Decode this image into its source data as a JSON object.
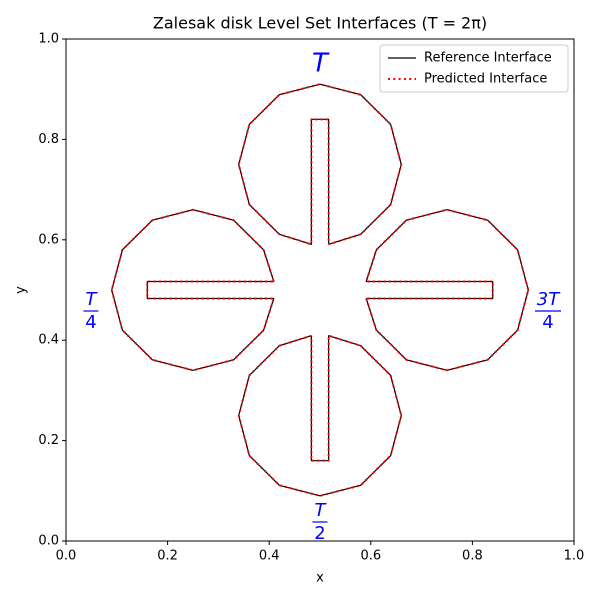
{
  "chart_data": {
    "type": "line",
    "title": "Zalesak disk Level Set Interfaces (T = 2π)",
    "x_label": "x",
    "y_label": "y",
    "xlim": [
      0,
      1
    ],
    "ylim": [
      0,
      1
    ],
    "xticks": [
      {
        "value": 0,
        "label": "0.0"
      },
      {
        "value": 0.2,
        "label": "0.2"
      },
      {
        "value": 0.4,
        "label": "0.4"
      },
      {
        "value": 0.6,
        "label": "0.6"
      },
      {
        "value": 0.8,
        "label": "0.8"
      },
      {
        "value": 1,
        "label": "1.0"
      }
    ],
    "yticks": [
      {
        "value": 0,
        "label": "0.0"
      },
      {
        "value": 0.2,
        "label": "0.2"
      },
      {
        "value": 0.4,
        "label": "0.4"
      },
      {
        "value": 0.6,
        "label": "0.6"
      },
      {
        "value": 0.8,
        "label": "0.8"
      },
      {
        "value": 1,
        "label": "1.0"
      }
    ],
    "legend": "upper right",
    "annotation_color": "#0000ff",
    "annotations": [
      {
        "text": "T"
      },
      {
        "numerator": "T",
        "denominator": "4"
      },
      {
        "numerator": "T",
        "denominator": "2"
      },
      {
        "numerator": "3T",
        "denominator": "4"
      }
    ],
    "series": [
      {
        "name": "Reference Interface",
        "color": "#000000",
        "style": "solid",
        "x": [
          0.517,
          0.58,
          0.639,
          0.66,
          0.639,
          0.58,
          0.5,
          0.42,
          0.361,
          0.34,
          0.361,
          0.42,
          0.483,
          0.483,
          0.517,
          0.517,
          null,
          0.409,
          0.389,
          0.33,
          0.25,
          0.17,
          0.111,
          0.09,
          0.111,
          0.17,
          0.25,
          0.33,
          0.389,
          0.409,
          0.16,
          0.16,
          0.409,
          null,
          0.483,
          0.42,
          0.361,
          0.34,
          0.361,
          0.42,
          0.5,
          0.58,
          0.639,
          0.66,
          0.639,
          0.58,
          0.517,
          0.517,
          0.483,
          0.483,
          null,
          0.591,
          0.611,
          0.67,
          0.75,
          0.83,
          0.889,
          0.91,
          0.889,
          0.83,
          0.75,
          0.67,
          0.611,
          0.591,
          0.84,
          0.84,
          0.591
        ],
        "y": [
          0.591,
          0.611,
          0.67,
          0.75,
          0.83,
          0.889,
          0.91,
          0.889,
          0.83,
          0.75,
          0.67,
          0.611,
          0.591,
          0.84,
          0.84,
          0.591,
          null,
          0.517,
          0.58,
          0.639,
          0.66,
          0.639,
          0.58,
          0.5,
          0.42,
          0.361,
          0.34,
          0.361,
          0.42,
          0.483,
          0.483,
          0.517,
          0.517,
          null,
          0.409,
          0.389,
          0.33,
          0.25,
          0.17,
          0.111,
          0.09,
          0.111,
          0.17,
          0.25,
          0.33,
          0.389,
          0.409,
          0.16,
          0.16,
          0.409,
          null,
          0.483,
          0.42,
          0.361,
          0.34,
          0.361,
          0.42,
          0.5,
          0.58,
          0.639,
          0.66,
          0.639,
          0.58,
          0.517,
          0.517,
          0.483,
          0.483
        ]
      },
      {
        "name": "Predicted Interface",
        "color": "#ff0000",
        "style": "dotted",
        "x": [
          0.517,
          0.58,
          0.639,
          0.66,
          0.639,
          0.58,
          0.5,
          0.42,
          0.361,
          0.34,
          0.361,
          0.42,
          0.483,
          0.483,
          0.517,
          0.517,
          null,
          0.409,
          0.389,
          0.33,
          0.25,
          0.17,
          0.111,
          0.09,
          0.111,
          0.17,
          0.25,
          0.33,
          0.389,
          0.409,
          0.16,
          0.16,
          0.409,
          null,
          0.483,
          0.42,
          0.361,
          0.34,
          0.361,
          0.42,
          0.5,
          0.58,
          0.639,
          0.66,
          0.639,
          0.58,
          0.517,
          0.517,
          0.483,
          0.483,
          null,
          0.591,
          0.611,
          0.67,
          0.75,
          0.83,
          0.889,
          0.91,
          0.889,
          0.83,
          0.75,
          0.67,
          0.611,
          0.591,
          0.84,
          0.84,
          0.591
        ],
        "y": [
          0.591,
          0.611,
          0.67,
          0.75,
          0.83,
          0.889,
          0.91,
          0.889,
          0.83,
          0.75,
          0.67,
          0.611,
          0.591,
          0.84,
          0.84,
          0.591,
          null,
          0.517,
          0.58,
          0.639,
          0.66,
          0.639,
          0.58,
          0.5,
          0.42,
          0.361,
          0.34,
          0.361,
          0.42,
          0.483,
          0.483,
          0.517,
          0.517,
          null,
          0.409,
          0.389,
          0.33,
          0.25,
          0.17,
          0.111,
          0.09,
          0.111,
          0.17,
          0.25,
          0.33,
          0.389,
          0.409,
          0.16,
          0.16,
          0.409,
          null,
          0.483,
          0.42,
          0.361,
          0.34,
          0.361,
          0.42,
          0.5,
          0.58,
          0.639,
          0.66,
          0.639,
          0.58,
          0.517,
          0.517,
          0.483,
          0.483
        ]
      }
    ]
  }
}
